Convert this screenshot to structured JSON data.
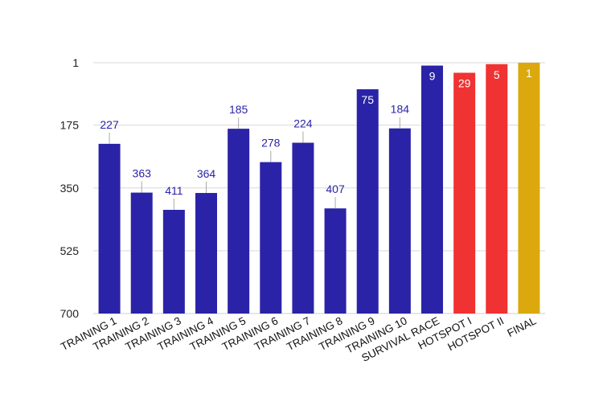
{
  "chart_data": {
    "type": "bar",
    "title": "",
    "xlabel": "",
    "ylabel": "",
    "y_axis_reversed": true,
    "ylim": [
      1,
      700
    ],
    "yticks": [
      1,
      175,
      350,
      525,
      700
    ],
    "grid": true,
    "legend": "none",
    "categories": [
      "TRAINING 1",
      "TRAINING 2",
      "TRAINING 3",
      "TRAINING 4",
      "TRAINING 5",
      "TRAINING 6",
      "TRAINING 7",
      "TRAINING 8",
      "TRAINING 9",
      "TRAINING 10",
      "SURVIVAL RACE",
      "HOTSPOT I",
      "HOTSPOT II",
      "FINAL"
    ],
    "values": [
      227,
      363,
      411,
      364,
      185,
      278,
      224,
      407,
      75,
      184,
      9,
      29,
      5,
      1
    ],
    "value_labels": [
      "227",
      "363",
      "411",
      "364",
      "185",
      "278",
      "224",
      "407",
      "75",
      "184",
      "9",
      "29",
      "5",
      "1"
    ],
    "label_inside": [
      false,
      false,
      false,
      false,
      false,
      false,
      false,
      false,
      true,
      false,
      true,
      true,
      true,
      true
    ],
    "bar_colors": [
      "#2a23a8",
      "#2a23a8",
      "#2a23a8",
      "#2a23a8",
      "#2a23a8",
      "#2a23a8",
      "#2a23a8",
      "#2a23a8",
      "#2a23a8",
      "#2a23a8",
      "#2a23a8",
      "#f03232",
      "#f03232",
      "#dba90e"
    ],
    "colors": {
      "grid": "#d9d9d9",
      "axis": "#cfcfcf",
      "label_outside": "#2a23a8",
      "label_inside": "#ffffff",
      "label_leader": "#aaaaaa"
    }
  }
}
